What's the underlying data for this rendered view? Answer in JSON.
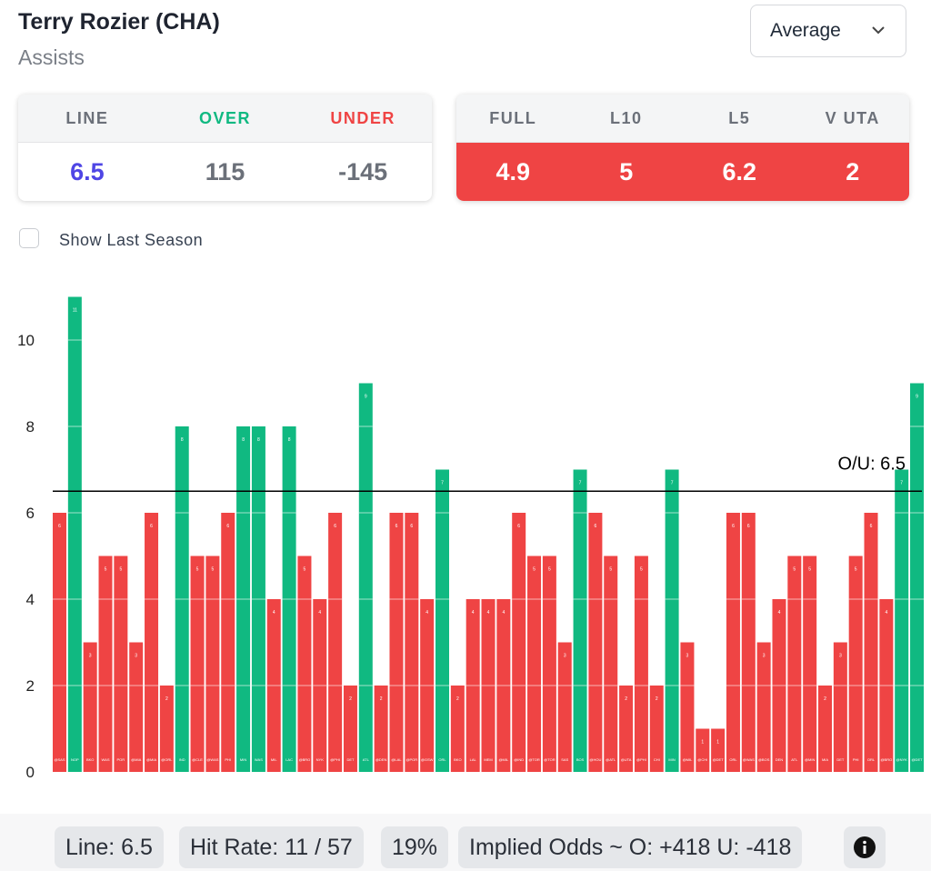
{
  "header": {
    "player": "Terry Rozier (CHA)",
    "stat": "Assists",
    "dropdown": "Average"
  },
  "odds": {
    "line_label": "LINE",
    "over_label": "OVER",
    "under_label": "UNDER",
    "line": "6.5",
    "over": "115",
    "under": "-145"
  },
  "averages": {
    "labels": [
      "FULL",
      "L10",
      "L5",
      "V UTA"
    ],
    "values": [
      "4.9",
      "5",
      "6.2",
      "2"
    ]
  },
  "toggle": {
    "label": "Show Last Season",
    "checked": false
  },
  "colors": {
    "over": "#10b981",
    "under": "#ef4444",
    "line": "#4f46e5",
    "over_label": "#10b981",
    "under_label": "#ef4444"
  },
  "chart_data": {
    "type": "bar",
    "ylim": [
      0,
      11
    ],
    "yticks": [
      0,
      2,
      4,
      6,
      8,
      10
    ],
    "line": 6.5,
    "line_label": "O/U: 6.5",
    "categories": [
      "@SAS",
      "NOP",
      "BKO",
      "WAS",
      "POR",
      "@MIA",
      "@MIA",
      "@ORL",
      "IND",
      "@CLE",
      "@WAS",
      "PHI",
      "MIN",
      "WAS",
      "MIL",
      "LAC",
      "@BRO",
      "NYK",
      "@PHI",
      "DET",
      "ATL",
      "@DEN",
      "@LAL",
      "@POR",
      "@GSW",
      "ORL",
      "BKO",
      "LAL",
      "MEM",
      "@MIL",
      "@IND",
      "@TOR",
      "@TOR",
      "SAS",
      "BOS",
      "@HOU",
      "@ATL",
      "@UTA",
      "@PHI",
      "CHI",
      "MIN",
      "@MIL",
      "@CHI",
      "@DET",
      "ORL",
      "@WAS",
      "@BOS",
      "DEN",
      "ATL",
      "@MIN",
      "MIA",
      "DET",
      "PHI",
      "ORL",
      "@BRO",
      "@NYK",
      "@DET"
    ],
    "values": [
      6,
      11,
      3,
      5,
      5,
      3,
      6,
      2,
      8,
      5,
      5,
      6,
      8,
      8,
      4,
      8,
      5,
      4,
      6,
      2,
      9,
      2,
      6,
      6,
      4,
      7,
      2,
      4,
      4,
      4,
      6,
      5,
      5,
      3,
      7,
      6,
      5,
      2,
      5,
      2,
      7,
      3,
      1,
      1,
      6,
      6,
      3,
      4,
      5,
      5,
      2,
      3,
      5,
      6,
      4,
      7,
      9
    ]
  },
  "footer": {
    "line": "Line: 6.5",
    "hit_rate": "Hit Rate: 11 / 57",
    "pct": "19%",
    "implied": "Implied Odds ~ O: +418 U: -418"
  }
}
